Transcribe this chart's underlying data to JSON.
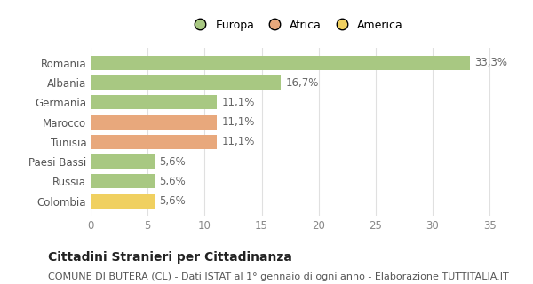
{
  "categories": [
    "Romania",
    "Albania",
    "Germania",
    "Marocco",
    "Tunisia",
    "Paesi Bassi",
    "Russia",
    "Colombia"
  ],
  "values": [
    33.3,
    16.7,
    11.1,
    11.1,
    11.1,
    5.6,
    5.6,
    5.6
  ],
  "labels": [
    "33,3%",
    "16,7%",
    "11,1%",
    "11,1%",
    "11,1%",
    "5,6%",
    "5,6%",
    "5,6%"
  ],
  "colors": [
    "#a8c882",
    "#a8c882",
    "#a8c882",
    "#e8a87c",
    "#e8a87c",
    "#a8c882",
    "#a8c882",
    "#f0d060"
  ],
  "legend_labels": [
    "Europa",
    "Africa",
    "America"
  ],
  "legend_colors": [
    "#a8c882",
    "#e8a87c",
    "#f0d060"
  ],
  "title": "Cittadini Stranieri per Cittadinanza",
  "subtitle": "COMUNE DI BUTERA (CL) - Dati ISTAT al 1° gennaio di ogni anno - Elaborazione TUTTITALIA.IT",
  "xlim": [
    0,
    36
  ],
  "xticks": [
    0,
    5,
    10,
    15,
    20,
    25,
    30,
    35
  ],
  "background_color": "#ffffff",
  "grid_color": "#e0e0e0",
  "bar_height": 0.72,
  "title_fontsize": 10,
  "subtitle_fontsize": 8,
  "tick_fontsize": 8.5,
  "label_fontsize": 8.5
}
